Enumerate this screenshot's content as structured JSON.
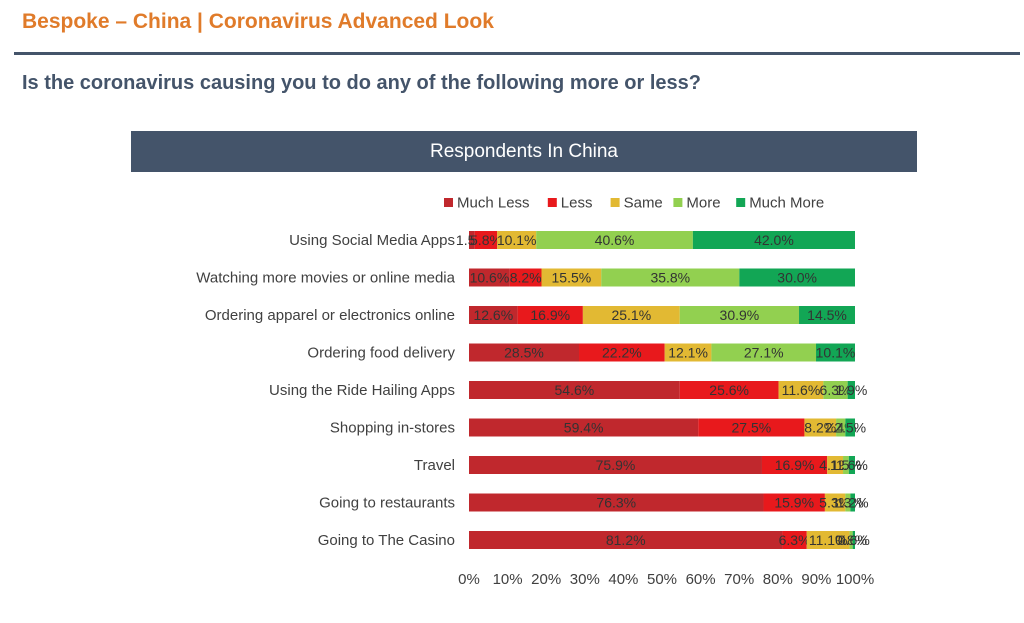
{
  "header": {
    "title": "Bespoke – China  |  Coronavirus Advanced Look"
  },
  "question": "Is the coronavirus causing you to do any of the following more or less?",
  "chart_data": {
    "type": "bar",
    "orientation": "horizontal",
    "stacked": "percent",
    "title": "Respondents In China",
    "legend_position": "top",
    "grid": false,
    "categories": [
      "Using Social Media Apps",
      "Watching more movies or online media",
      "Ordering apparel or electronics online",
      "Ordering food delivery",
      "Using the Ride Hailing Apps",
      "Shopping in-stores",
      "Travel",
      "Going to restaurants",
      "Going to The Casino"
    ],
    "series": [
      {
        "name": "Much Less",
        "color": "#c0282d",
        "values": [
          1.5,
          10.6,
          12.6,
          28.5,
          54.6,
          59.4,
          75.9,
          76.3,
          81.2
        ],
        "labels": [
          "1.5%",
          "10.6%",
          "12.6%",
          "28.5%",
          "54.6%",
          "59.4%",
          "75.9%",
          "76.3%",
          "81.2%"
        ]
      },
      {
        "name": "Less",
        "color": "#e8191c",
        "values": [
          5.8,
          8.2,
          16.9,
          22.2,
          25.6,
          27.5,
          16.9,
          15.9,
          6.3
        ],
        "labels": [
          "5.8%",
          "8.2%",
          "16.9%",
          "22.2%",
          "25.6%",
          "27.5%",
          "16.9%",
          "15.9%",
          "6.3%"
        ]
      },
      {
        "name": "Same",
        "color": "#e2b933",
        "values": [
          10.1,
          15.5,
          25.1,
          12.1,
          11.6,
          8.2,
          4.1,
          5.3,
          11.1
        ],
        "labels": [
          "10.1%",
          "15.5%",
          "25.1%",
          "12.1%",
          "11.6%",
          "8.2%",
          "4.1%",
          "5.3%",
          "11.1%"
        ]
      },
      {
        "name": "More",
        "color": "#92d050",
        "values": [
          40.6,
          35.8,
          30.9,
          27.1,
          6.3,
          2.4,
          1.5,
          1.3,
          0.8
        ],
        "labels": [
          "40.6%",
          "35.8%",
          "30.9%",
          "27.1%",
          "6.3%",
          "2.4%",
          "1.5%",
          "1.3%",
          "0.8%"
        ]
      },
      {
        "name": "Much More",
        "color": "#12a655",
        "values": [
          42.0,
          30.0,
          14.5,
          10.1,
          1.9,
          2.5,
          1.6,
          1.2,
          0.6
        ],
        "labels": [
          "42.0%",
          "30.0%",
          "14.5%",
          "10.1%",
          "1.9%",
          "2.5%",
          "1.6%",
          "1.2%",
          "0.6%"
        ]
      }
    ],
    "xlim": [
      0,
      100
    ],
    "xticks": [
      "0%",
      "10%",
      "20%",
      "30%",
      "40%",
      "50%",
      "60%",
      "70%",
      "80%",
      "90%",
      "100%"
    ]
  }
}
